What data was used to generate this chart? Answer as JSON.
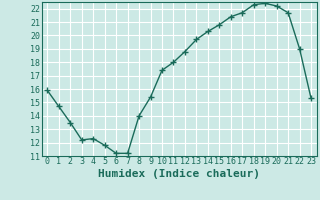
{
  "x": [
    0,
    1,
    2,
    3,
    4,
    5,
    6,
    7,
    8,
    9,
    10,
    11,
    12,
    13,
    14,
    15,
    16,
    17,
    18,
    19,
    20,
    21,
    22,
    23
  ],
  "y": [
    15.9,
    14.7,
    13.5,
    12.2,
    12.3,
    11.8,
    11.2,
    11.2,
    14.0,
    15.4,
    17.4,
    18.0,
    18.8,
    19.7,
    20.3,
    20.8,
    21.4,
    21.7,
    22.3,
    22.4,
    22.2,
    21.7,
    19.0,
    15.3
  ],
  "line_color": "#1a6b5a",
  "marker": "+",
  "marker_size": 4,
  "xlabel": "Humidex (Indice chaleur)",
  "xlim": [
    -0.5,
    23.5
  ],
  "ylim": [
    11,
    22.5
  ],
  "yticks": [
    11,
    12,
    13,
    14,
    15,
    16,
    17,
    18,
    19,
    20,
    21,
    22
  ],
  "xticks": [
    0,
    1,
    2,
    3,
    4,
    5,
    6,
    7,
    8,
    9,
    10,
    11,
    12,
    13,
    14,
    15,
    16,
    17,
    18,
    19,
    20,
    21,
    22,
    23
  ],
  "bg_color": "#cce9e5",
  "grid_color": "#ffffff",
  "tick_fontsize": 6,
  "xlabel_fontsize": 8,
  "line_width": 1.0,
  "marker_edge_width": 1.0
}
